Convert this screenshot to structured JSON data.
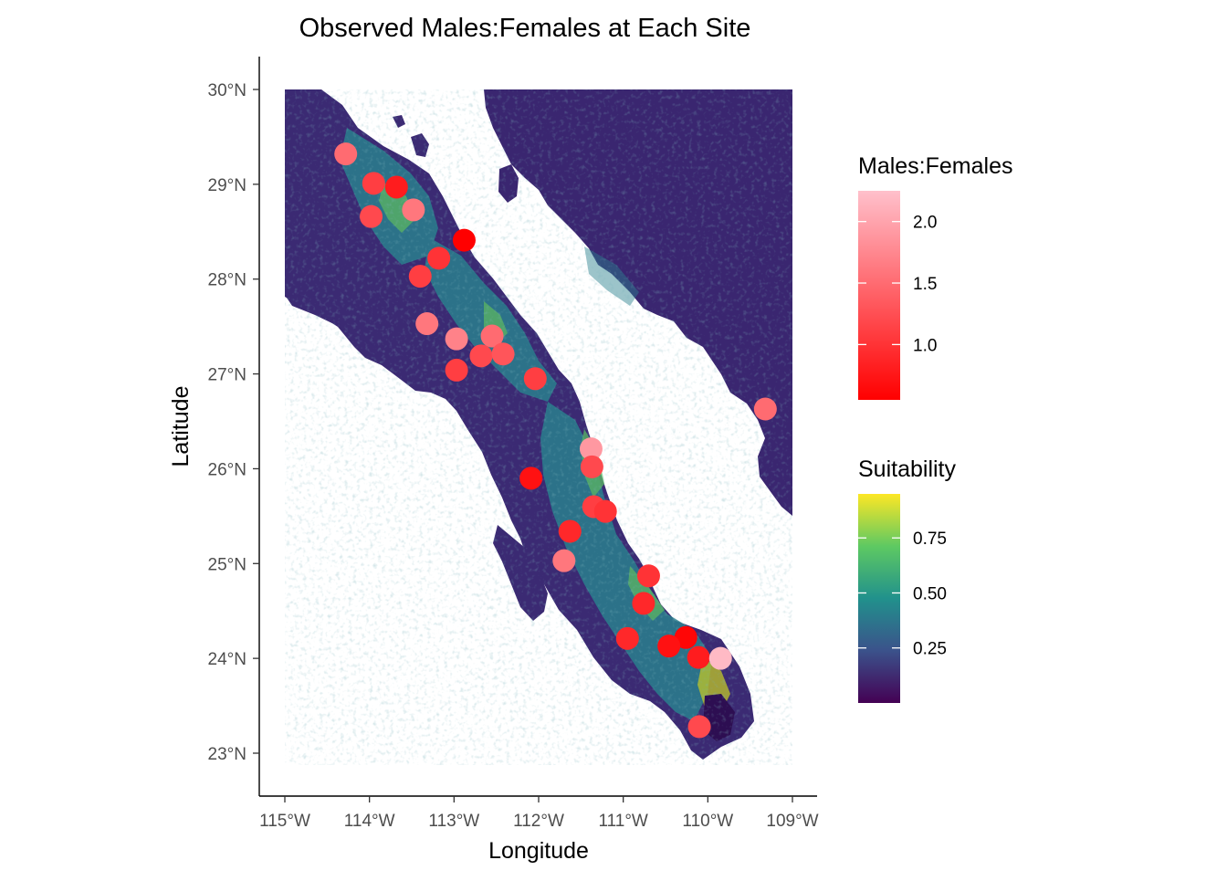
{
  "chart_data": {
    "type": "scatter",
    "title": "Observed Males:Females at Each Site",
    "xlabel": "Longitude",
    "ylabel": "Latitude",
    "xlim": [
      -115.3,
      -108.7
    ],
    "ylim": [
      22.55,
      30.35
    ],
    "x_ticks": [
      {
        "value": -115,
        "label": "115°W"
      },
      {
        "value": -114,
        "label": "114°W"
      },
      {
        "value": -113,
        "label": "113°W"
      },
      {
        "value": -112,
        "label": "112°W"
      },
      {
        "value": -111,
        "label": "111°W"
      },
      {
        "value": -110,
        "label": "110°W"
      },
      {
        "value": -109,
        "label": "109°W"
      }
    ],
    "y_ticks": [
      {
        "value": 30,
        "label": "30°N"
      },
      {
        "value": 29,
        "label": "29°N"
      },
      {
        "value": 28,
        "label": "28°N"
      },
      {
        "value": 27,
        "label": "27°N"
      },
      {
        "value": 26,
        "label": "26°N"
      },
      {
        "value": 25,
        "label": "25°N"
      },
      {
        "value": 24,
        "label": "24°N"
      },
      {
        "value": 23,
        "label": "23°N"
      }
    ],
    "grid": false,
    "background_map": "Suitability raster (viridis) over the Baja California peninsula and adjacent Sonora/Sinaloa coast",
    "points": [
      {
        "lon": -114.28,
        "lat": 29.32,
        "ratio": 1.5
      },
      {
        "lon": -113.95,
        "lat": 29.01,
        "ratio": 1.1
      },
      {
        "lon": -113.68,
        "lat": 28.97,
        "ratio": 0.8
      },
      {
        "lon": -113.98,
        "lat": 28.66,
        "ratio": 1.2
      },
      {
        "lon": -113.48,
        "lat": 28.73,
        "ratio": 1.6
      },
      {
        "lon": -112.88,
        "lat": 28.41,
        "ratio": 0.55
      },
      {
        "lon": -113.18,
        "lat": 28.22,
        "ratio": 1.0
      },
      {
        "lon": -113.4,
        "lat": 28.03,
        "ratio": 1.1
      },
      {
        "lon": -113.32,
        "lat": 27.53,
        "ratio": 1.6
      },
      {
        "lon": -112.97,
        "lat": 27.37,
        "ratio": 1.7
      },
      {
        "lon": -112.55,
        "lat": 27.4,
        "ratio": 1.5
      },
      {
        "lon": -112.68,
        "lat": 27.19,
        "ratio": 1.2
      },
      {
        "lon": -112.42,
        "lat": 27.21,
        "ratio": 1.3
      },
      {
        "lon": -112.97,
        "lat": 27.04,
        "ratio": 1.1
      },
      {
        "lon": -112.04,
        "lat": 26.95,
        "ratio": 1.1
      },
      {
        "lon": -109.32,
        "lat": 26.63,
        "ratio": 1.5
      },
      {
        "lon": -111.38,
        "lat": 26.21,
        "ratio": 1.9
      },
      {
        "lon": -111.37,
        "lat": 26.02,
        "ratio": 1.2
      },
      {
        "lon": -112.09,
        "lat": 25.9,
        "ratio": 0.7
      },
      {
        "lon": -111.35,
        "lat": 25.6,
        "ratio": 1.1
      },
      {
        "lon": -111.21,
        "lat": 25.55,
        "ratio": 1.0
      },
      {
        "lon": -111.63,
        "lat": 25.34,
        "ratio": 0.9
      },
      {
        "lon": -111.7,
        "lat": 25.03,
        "ratio": 1.6
      },
      {
        "lon": -110.7,
        "lat": 24.87,
        "ratio": 1.0
      },
      {
        "lon": -110.76,
        "lat": 24.58,
        "ratio": 0.9
      },
      {
        "lon": -110.95,
        "lat": 24.21,
        "ratio": 0.9
      },
      {
        "lon": -110.26,
        "lat": 24.22,
        "ratio": 0.6
      },
      {
        "lon": -110.46,
        "lat": 24.13,
        "ratio": 0.7
      },
      {
        "lon": -110.11,
        "lat": 24.01,
        "ratio": 0.8
      },
      {
        "lon": -109.85,
        "lat": 24.0,
        "ratio": 2.2
      },
      {
        "lon": -110.1,
        "lat": 23.28,
        "ratio": 1.2
      }
    ],
    "legends": [
      {
        "title": "Males:Females",
        "type": "gradient",
        "range": [
          0.55,
          2.25
        ],
        "ticks": [
          {
            "value": 1.0,
            "label": "1.0"
          },
          {
            "value": 1.5,
            "label": "1.5"
          },
          {
            "value": 2.0,
            "label": "2.0"
          }
        ],
        "colors": [
          "#ff0000",
          "#ffc0cb"
        ]
      },
      {
        "title": "Suitability",
        "type": "gradient",
        "range": [
          0.0,
          0.95
        ],
        "ticks": [
          {
            "value": 0.25,
            "label": "0.25"
          },
          {
            "value": 0.5,
            "label": "0.50"
          },
          {
            "value": 0.75,
            "label": "0.75"
          }
        ],
        "colors": [
          "#440154",
          "#3b528b",
          "#21918c",
          "#5ec962",
          "#fde725"
        ]
      }
    ]
  }
}
